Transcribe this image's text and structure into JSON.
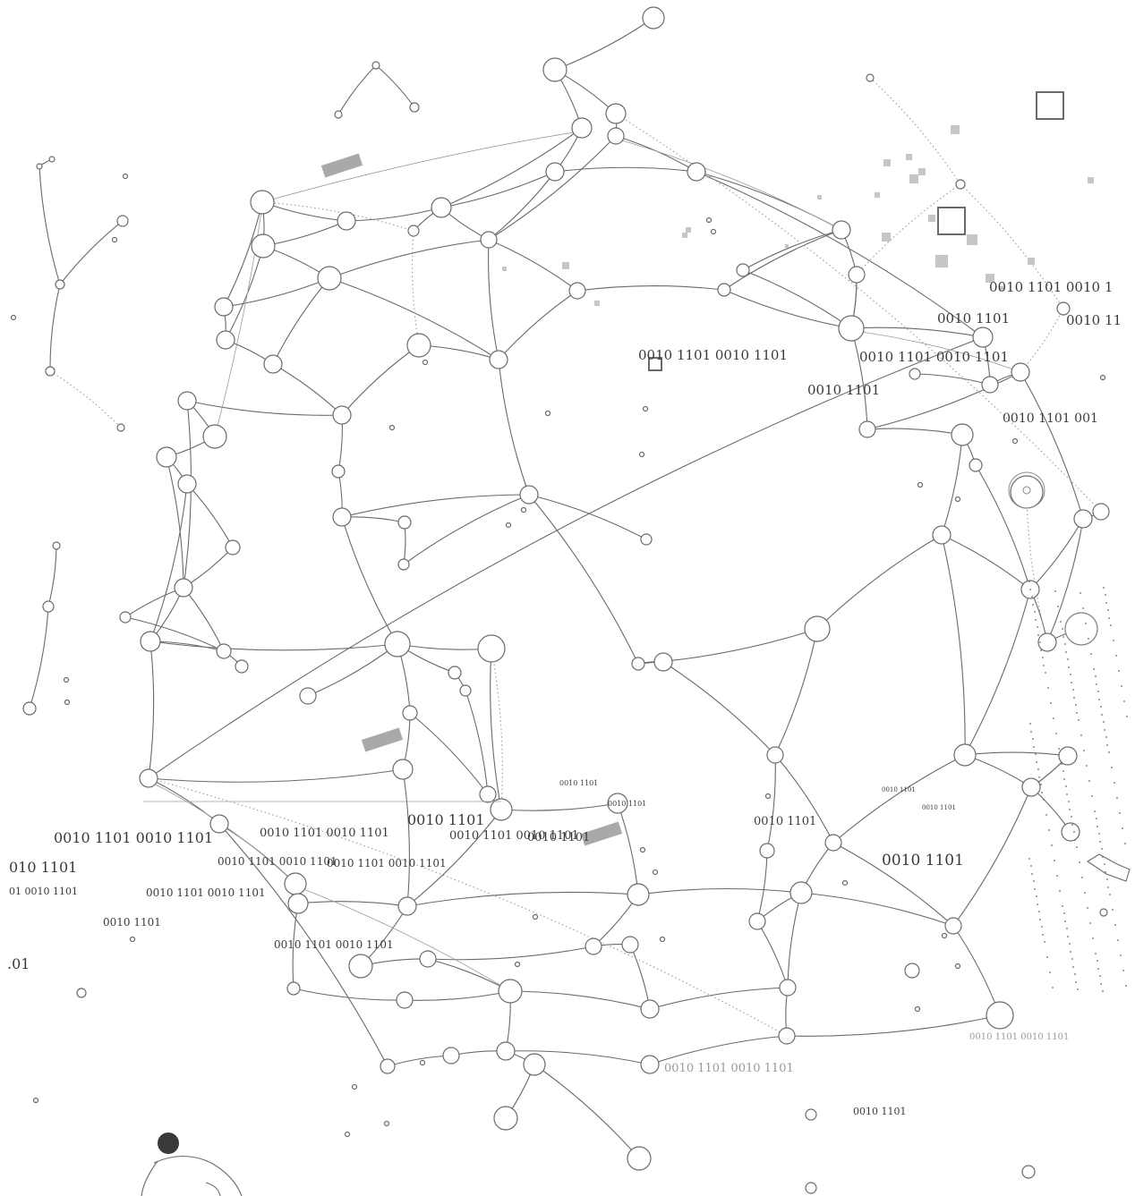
{
  "labels": [
    {
      "text": "0010 1101 0010 1"
    },
    {
      "text": "0010 1101"
    },
    {
      "text": "0010 11"
    },
    {
      "text": "0010 1101 0010 1101"
    },
    {
      "text": "0010 1101 0010 1101"
    },
    {
      "text": "0010 1101"
    },
    {
      "text": "0010 1101   001"
    },
    {
      "text": "0010 1101"
    },
    {
      "text": "0010 1101"
    },
    {
      "text": "0010 1101"
    },
    {
      "text": "0010 1101"
    },
    {
      "text": "0010 1101"
    },
    {
      "text": "0010 1101"
    },
    {
      "text": "0010 1101 0010 1101"
    },
    {
      "text": "0010 1101 0010 1101"
    },
    {
      "text": "0010 1101"
    },
    {
      "text": "0010 1101 0010 1101"
    },
    {
      "text": "0010 1101 0010 1101"
    },
    {
      "text": "0010 1101"
    },
    {
      "text": "0010 1101 0010 1101"
    },
    {
      "text": "0010 1101 0010 1101"
    },
    {
      "text": "010 1101"
    },
    {
      "text": "01 0010 1101"
    },
    {
      "text": "0010 1101"
    },
    {
      "text": "0010 1101 0010 1101"
    },
    {
      "text": ".01"
    },
    {
      "text": "0010 1101 0010 1101"
    },
    {
      "text": "0010 1101 0010 1101"
    },
    {
      "text": "0010 1101"
    }
  ],
  "colors": {
    "line": "#6a6a6a",
    "square_fill": "#c6c6c6",
    "text": "#3a3a3a"
  }
}
